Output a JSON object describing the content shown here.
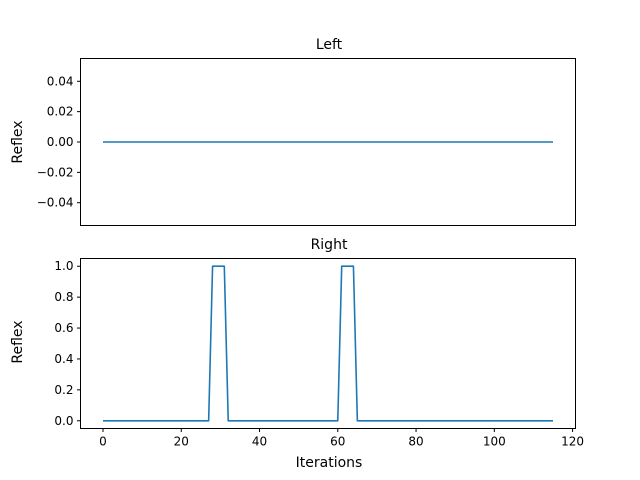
{
  "chart_data": [
    {
      "type": "line",
      "title": "Left",
      "xlabel": "",
      "ylabel": "Reflex",
      "xlim": [
        -5.75,
        120.75
      ],
      "ylim": [
        -0.055,
        0.055
      ],
      "x_ticks_visible": false,
      "y_ticks": [
        -0.04,
        -0.02,
        0.0,
        0.02,
        0.04
      ],
      "y_tick_labels": [
        "−0.04",
        "−0.02",
        "0.00",
        "0.02",
        "0.04"
      ],
      "grid": false,
      "series": [
        {
          "color": "#1f77b4",
          "x": [
            0,
            115
          ],
          "y": [
            0,
            0
          ]
        }
      ]
    },
    {
      "type": "line",
      "title": "Right",
      "xlabel": "Iterations",
      "ylabel": "Reflex",
      "xlim": [
        -5.75,
        120.75
      ],
      "ylim": [
        -0.05,
        1.05
      ],
      "x_ticks": [
        0,
        20,
        40,
        60,
        80,
        100,
        120
      ],
      "x_tick_labels": [
        "0",
        "20",
        "40",
        "60",
        "80",
        "100",
        "120"
      ],
      "y_ticks": [
        0.0,
        0.2,
        0.4,
        0.6,
        0.8,
        1.0
      ],
      "y_tick_labels": [
        "0.0",
        "0.2",
        "0.4",
        "0.6",
        "0.8",
        "1.0"
      ],
      "grid": false,
      "series": [
        {
          "color": "#1f77b4",
          "x": [
            0,
            27,
            28,
            31,
            32,
            60,
            61,
            64,
            65,
            115
          ],
          "y": [
            0,
            0,
            1,
            1,
            0,
            0,
            1,
            1,
            0,
            0
          ]
        }
      ]
    }
  ]
}
